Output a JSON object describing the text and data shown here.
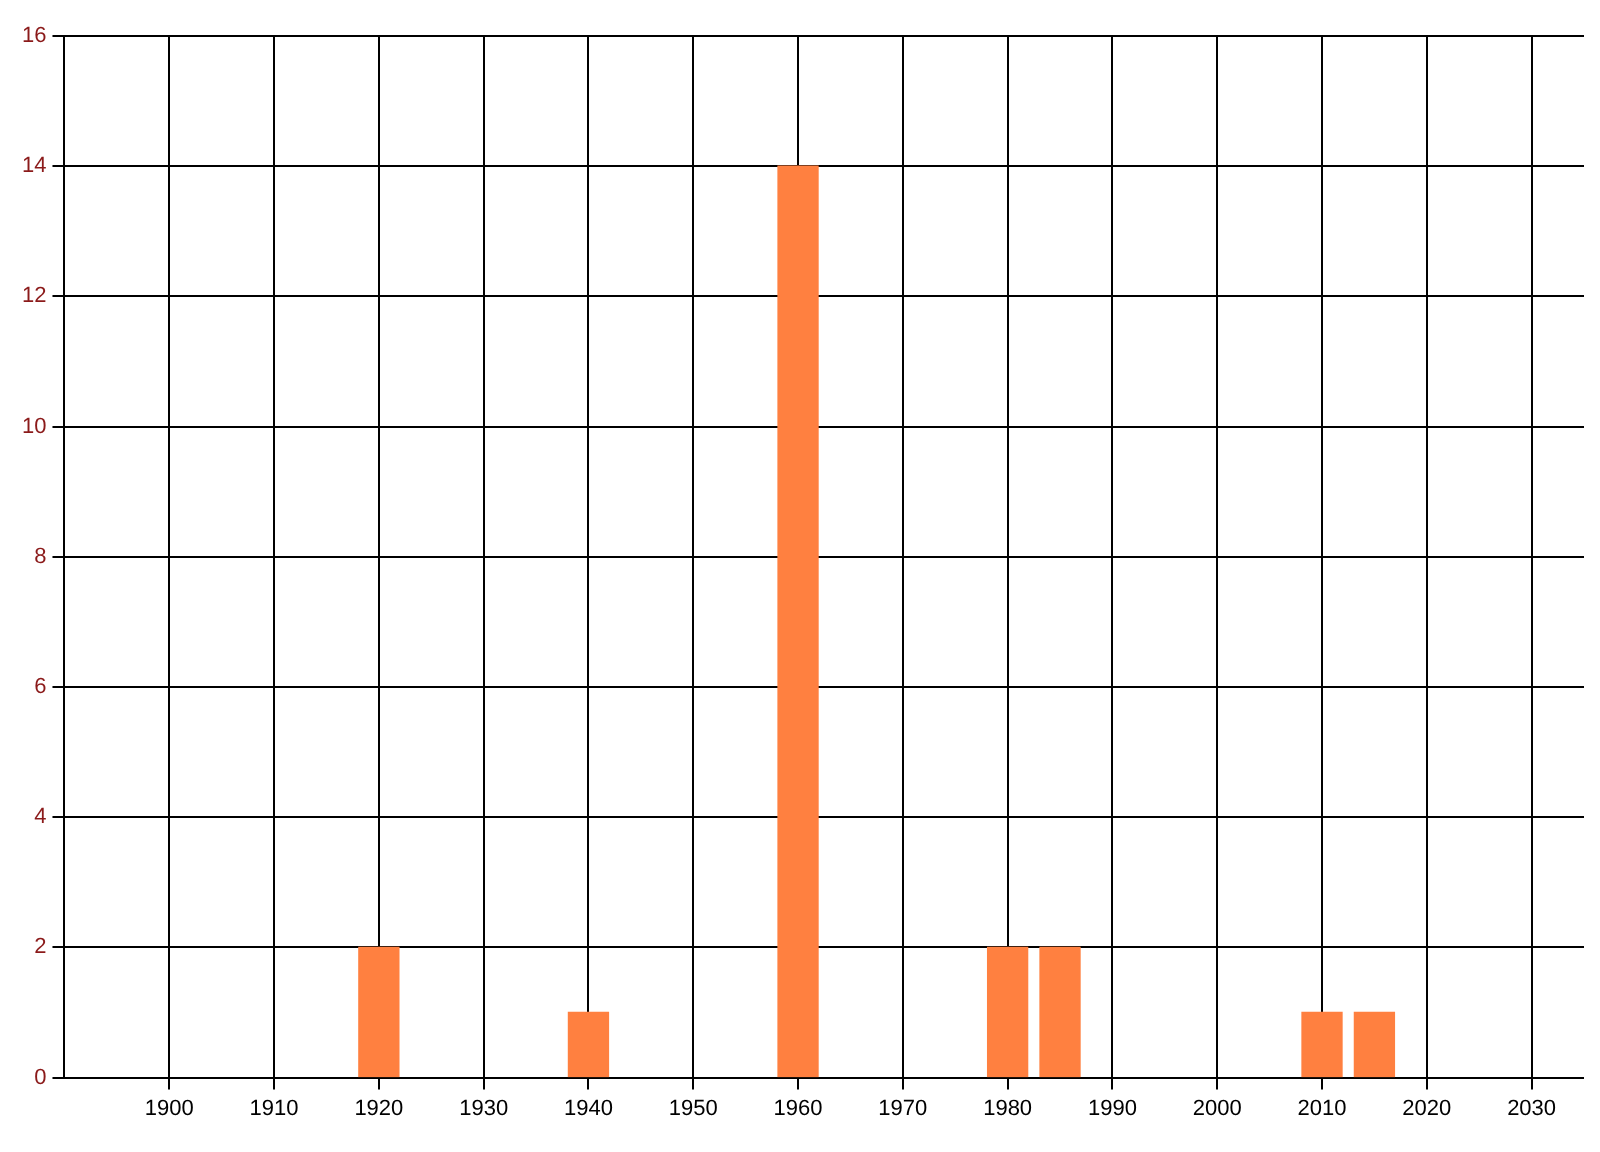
{
  "chart_data": {
    "type": "bar",
    "x": [
      1920,
      1940,
      1960,
      1980,
      1985,
      2010,
      2015
    ],
    "values": [
      2,
      1,
      14,
      2,
      2,
      1,
      1
    ],
    "color": "#ff8040",
    "xlim": [
      1890,
      2035
    ],
    "xticks": [
      1900,
      1910,
      1920,
      1930,
      1940,
      1950,
      1960,
      1970,
      1980,
      1990,
      2000,
      2010,
      2020,
      2030
    ],
    "ylim": [
      0,
      16
    ],
    "yticks": [
      0,
      2,
      4,
      6,
      8,
      10,
      12,
      14,
      16
    ],
    "grid": true,
    "legend": false
  }
}
